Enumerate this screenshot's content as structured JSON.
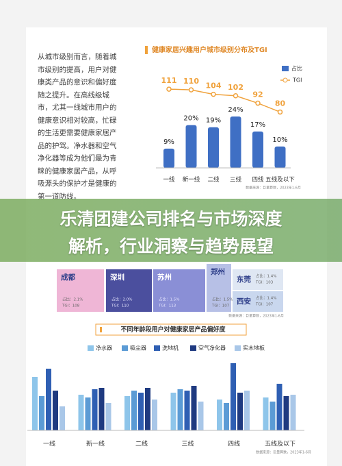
{
  "intro_text": "从城市级别而言，随着城市级别的提高，用户对健康类产品的意识和偏好度随之提升。在高线级城市，尤其一线城市用户的健康意识相对较高，忙碌的生活更需要健康家居产品的护驾。净水器和空气净化器等成为他们最为青睐的健康家居产品，从呼吸源头的保护才是健康的第一道防线。",
  "overlay_title": [
    "乐清团建公司排名与市场深度",
    "解析，行业洞察与趋势展望"
  ],
  "chart_data": [
    {
      "type": "bar_line",
      "title": "健康家居兴趣用户城市级别分布及TGI",
      "categories": [
        "一线",
        "新一线",
        "二线",
        "三线",
        "四线",
        "五线及以下"
      ],
      "series": [
        {
          "name": "占比",
          "color": "#3f6fc4",
          "values": [
            9,
            20,
            19,
            24,
            17,
            10
          ],
          "value_labels": [
            "9%",
            "20%",
            "19%",
            "24%",
            "17%",
            "10%"
          ]
        },
        {
          "name": "TGI",
          "color": "#f0a23c",
          "axis": "y2",
          "values": [
            111,
            110,
            104,
            102,
            92,
            80
          ]
        }
      ],
      "ylim": [
        0,
        40
      ],
      "y2lim": [
        60,
        125
      ],
      "source": "数据来源：巨量算数，2023年1-6月"
    },
    {
      "type": "treemap",
      "cells": [
        {
          "name": "成都",
          "color": "#efb6d6",
          "share": 2.1,
          "share_label": "占比：2.1%",
          "tgi": 108,
          "tgi_label": "TGI：108"
        },
        {
          "name": "深圳",
          "color": "#4b4f9e",
          "share": 2.0,
          "share_label": "占比：2.0%",
          "tgi": 110,
          "tgi_label": "TGI：110"
        },
        {
          "name": "苏州",
          "color": "#8a8fd6",
          "share": 1.5,
          "share_label": "占比：1.5%",
          "tgi": 113,
          "tgi_label": "TGI：113"
        },
        {
          "name": "郑州",
          "color": "#b7c0e6",
          "share": 1.5,
          "share_label": "占比：1.5%",
          "tgi": 107,
          "tgi_label": "TGI：107"
        },
        {
          "name": "东莞",
          "color": "#dfe7f3",
          "share": 1.4,
          "share_label": "占比：1.4%",
          "tgi": 103,
          "tgi_label": "TGI：103"
        },
        {
          "name": "西安",
          "color": "#c9d7ee",
          "share": 1.4,
          "share_label": "占比：1.4%",
          "tgi": 107,
          "tgi_label": "TGI：107"
        }
      ],
      "source": "数据来源：巨量算数，2023年1-6月"
    },
    {
      "type": "grouped_bar",
      "title": "不同年龄段用户对健康家居产品偏好度",
      "categories": [
        "一线",
        "新一线",
        "二线",
        "三线",
        "四线",
        "五线及以下"
      ],
      "series": [
        {
          "name": "净水器",
          "color": "#8ec5ea",
          "values": [
            78,
            52,
            50,
            55,
            45,
            48
          ]
        },
        {
          "name": "吸尘器",
          "color": "#5b9bd5",
          "values": [
            50,
            48,
            58,
            60,
            40,
            42
          ]
        },
        {
          "name": "洗地机",
          "color": "#2f5fb3",
          "values": [
            90,
            60,
            55,
            58,
            98,
            68
          ]
        },
        {
          "name": "空气净化器",
          "color": "#1f3a80",
          "values": [
            58,
            62,
            62,
            65,
            55,
            50
          ]
        },
        {
          "name": "实木地板",
          "color": "#a9c7e8",
          "values": [
            35,
            40,
            45,
            42,
            58,
            52
          ]
        }
      ],
      "ylim": [
        0,
        100
      ],
      "source": "数据来源：巨量算数，2023年1-6月"
    }
  ]
}
